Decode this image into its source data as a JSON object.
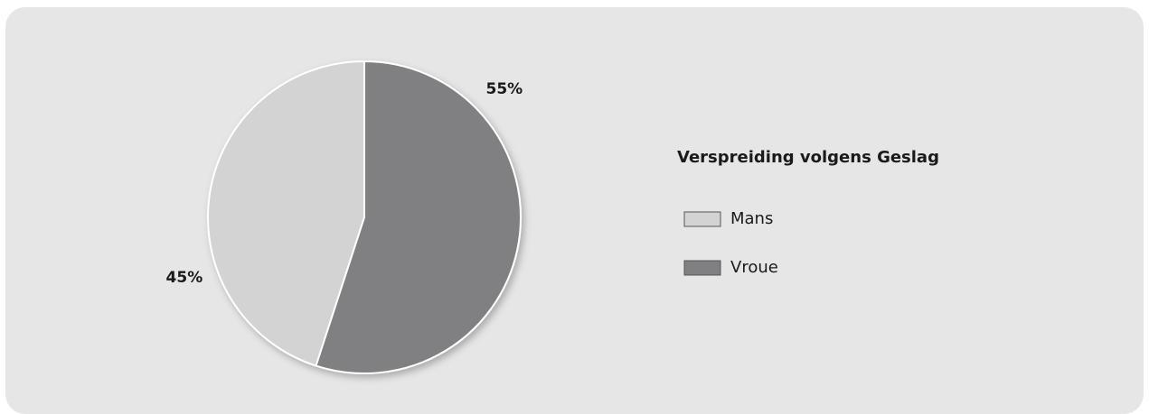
{
  "chart_data": {
    "type": "pie",
    "title": "Verspreiding volgens Geslag",
    "categories": [
      "Mans",
      "Vroue"
    ],
    "values": [
      45,
      55
    ],
    "value_labels": [
      "45%",
      "55%"
    ],
    "colors": [
      "#d3d3d4",
      "#808083"
    ]
  }
}
